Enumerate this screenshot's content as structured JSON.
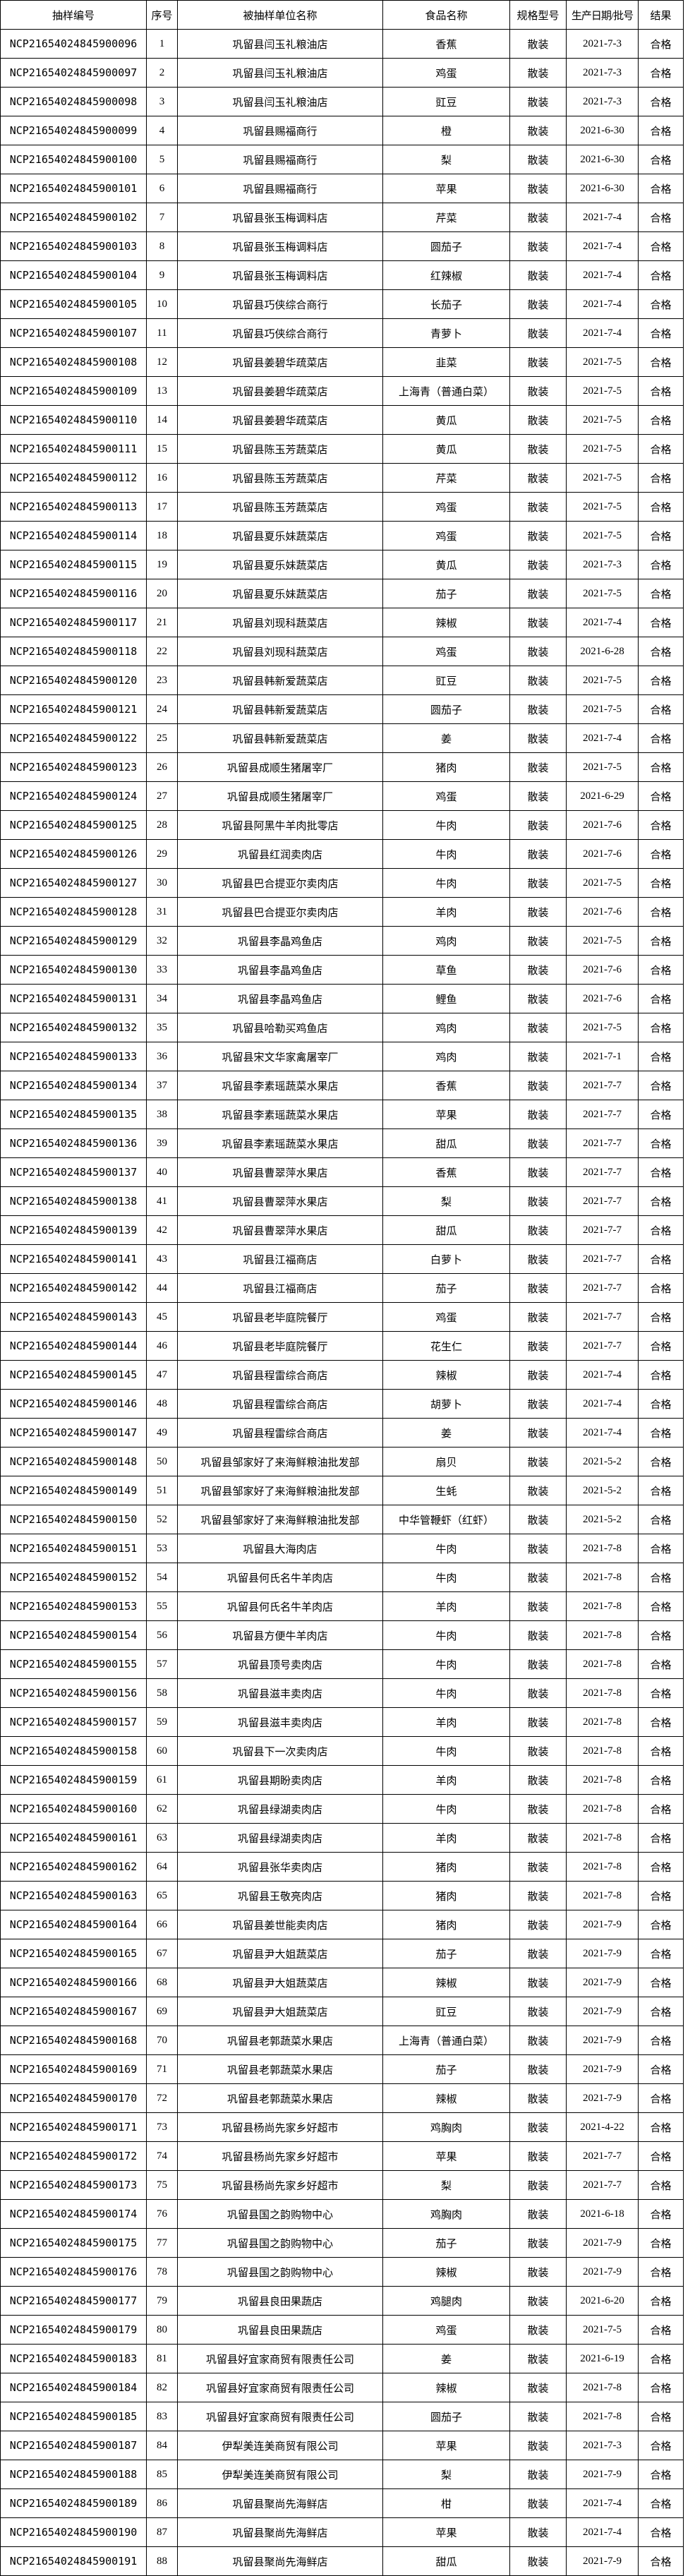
{
  "table": {
    "columns": [
      {
        "key": "sample_id",
        "label": "抽样编号"
      },
      {
        "key": "serial_number",
        "label": "序号"
      },
      {
        "key": "sampled_unit",
        "label": "被抽样单位名称"
      },
      {
        "key": "food_name",
        "label": "食品名称"
      },
      {
        "key": "spec_model",
        "label": "规格型号"
      },
      {
        "key": "production_date",
        "label": "生产日期/批号"
      },
      {
        "key": "result",
        "label": "结果"
      }
    ],
    "rows": [
      [
        "NCP21654024845900096",
        "1",
        "巩留县闫玉礼粮油店",
        "香蕉",
        "散装",
        "2021-7-3",
        "合格"
      ],
      [
        "NCP21654024845900097",
        "2",
        "巩留县闫玉礼粮油店",
        "鸡蛋",
        "散装",
        "2021-7-3",
        "合格"
      ],
      [
        "NCP21654024845900098",
        "3",
        "巩留县闫玉礼粮油店",
        "豇豆",
        "散装",
        "2021-7-3",
        "合格"
      ],
      [
        "NCP21654024845900099",
        "4",
        "巩留县赐福商行",
        "橙",
        "散装",
        "2021-6-30",
        "合格"
      ],
      [
        "NCP21654024845900100",
        "5",
        "巩留县赐福商行",
        "梨",
        "散装",
        "2021-6-30",
        "合格"
      ],
      [
        "NCP21654024845900101",
        "6",
        "巩留县赐福商行",
        "苹果",
        "散装",
        "2021-6-30",
        "合格"
      ],
      [
        "NCP21654024845900102",
        "7",
        "巩留县张玉梅调料店",
        "芹菜",
        "散装",
        "2021-7-4",
        "合格"
      ],
      [
        "NCP21654024845900103",
        "8",
        "巩留县张玉梅调料店",
        "圆茄子",
        "散装",
        "2021-7-4",
        "合格"
      ],
      [
        "NCP21654024845900104",
        "9",
        "巩留县张玉梅调料店",
        "红辣椒",
        "散装",
        "2021-7-4",
        "合格"
      ],
      [
        "NCP21654024845900105",
        "10",
        "巩留县巧侠综合商行",
        "长茄子",
        "散装",
        "2021-7-4",
        "合格"
      ],
      [
        "NCP21654024845900107",
        "11",
        "巩留县巧侠综合商行",
        "青萝卜",
        "散装",
        "2021-7-4",
        "合格"
      ],
      [
        "NCP21654024845900108",
        "12",
        "巩留县姜碧华疏菜店",
        "韭菜",
        "散装",
        "2021-7-5",
        "合格"
      ],
      [
        "NCP21654024845900109",
        "13",
        "巩留县姜碧华疏菜店",
        "上海青（普通白菜）",
        "散装",
        "2021-7-5",
        "合格"
      ],
      [
        "NCP21654024845900110",
        "14",
        "巩留县姜碧华疏菜店",
        "黄瓜",
        "散装",
        "2021-7-5",
        "合格"
      ],
      [
        "NCP21654024845900111",
        "15",
        "巩留县陈玉芳蔬菜店",
        "黄瓜",
        "散装",
        "2021-7-5",
        "合格"
      ],
      [
        "NCP21654024845900112",
        "16",
        "巩留县陈玉芳蔬菜店",
        "芹菜",
        "散装",
        "2021-7-5",
        "合格"
      ],
      [
        "NCP21654024845900113",
        "17",
        "巩留县陈玉芳蔬菜店",
        "鸡蛋",
        "散装",
        "2021-7-5",
        "合格"
      ],
      [
        "NCP21654024845900114",
        "18",
        "巩留县夏乐妹蔬菜店",
        "鸡蛋",
        "散装",
        "2021-7-5",
        "合格"
      ],
      [
        "NCP21654024845900115",
        "19",
        "巩留县夏乐妹蔬菜店",
        "黄瓜",
        "散装",
        "2021-7-3",
        "合格"
      ],
      [
        "NCP21654024845900116",
        "20",
        "巩留县夏乐妹蔬菜店",
        "茄子",
        "散装",
        "2021-7-5",
        "合格"
      ],
      [
        "NCP21654024845900117",
        "21",
        "巩留县刘现科蔬菜店",
        "辣椒",
        "散装",
        "2021-7-4",
        "合格"
      ],
      [
        "NCP21654024845900118",
        "22",
        "巩留县刘现科蔬菜店",
        "鸡蛋",
        "散装",
        "2021-6-28",
        "合格"
      ],
      [
        "NCP21654024845900120",
        "23",
        "巩留县韩新爱蔬菜店",
        "豇豆",
        "散装",
        "2021-7-5",
        "合格"
      ],
      [
        "NCP21654024845900121",
        "24",
        "巩留县韩新爱蔬菜店",
        "圆茄子",
        "散装",
        "2021-7-5",
        "合格"
      ],
      [
        "NCP21654024845900122",
        "25",
        "巩留县韩新爱蔬菜店",
        "姜",
        "散装",
        "2021-7-4",
        "合格"
      ],
      [
        "NCP21654024845900123",
        "26",
        "巩留县成顺生猪屠宰厂",
        "猪肉",
        "散装",
        "2021-7-5",
        "合格"
      ],
      [
        "NCP21654024845900124",
        "27",
        "巩留县成顺生猪屠宰厂",
        "鸡蛋",
        "散装",
        "2021-6-29",
        "合格"
      ],
      [
        "NCP21654024845900125",
        "28",
        "巩留县阿黑牛羊肉批零店",
        "牛肉",
        "散装",
        "2021-7-6",
        "合格"
      ],
      [
        "NCP21654024845900126",
        "29",
        "巩留县红润卖肉店",
        "牛肉",
        "散装",
        "2021-7-6",
        "合格"
      ],
      [
        "NCP21654024845900127",
        "30",
        "巩留县巴合提亚尔卖肉店",
        "牛肉",
        "散装",
        "2021-7-5",
        "合格"
      ],
      [
        "NCP21654024845900128",
        "31",
        "巩留县巴合提亚尔卖肉店",
        "羊肉",
        "散装",
        "2021-7-6",
        "合格"
      ],
      [
        "NCP21654024845900129",
        "32",
        "巩留县李晶鸡鱼店",
        "鸡肉",
        "散装",
        "2021-7-5",
        "合格"
      ],
      [
        "NCP21654024845900130",
        "33",
        "巩留县李晶鸡鱼店",
        "草鱼",
        "散装",
        "2021-7-6",
        "合格"
      ],
      [
        "NCP21654024845900131",
        "34",
        "巩留县李晶鸡鱼店",
        "鲤鱼",
        "散装",
        "2021-7-6",
        "合格"
      ],
      [
        "NCP21654024845900132",
        "35",
        "巩留县哈勒买鸡鱼店",
        "鸡肉",
        "散装",
        "2021-7-5",
        "合格"
      ],
      [
        "NCP21654024845900133",
        "36",
        "巩留县宋文华家禽屠宰厂",
        "鸡肉",
        "散装",
        "2021-7-1",
        "合格"
      ],
      [
        "NCP21654024845900134",
        "37",
        "巩留县李素瑶蔬菜水果店",
        "香蕉",
        "散装",
        "2021-7-7",
        "合格"
      ],
      [
        "NCP21654024845900135",
        "38",
        "巩留县李素瑶蔬菜水果店",
        "苹果",
        "散装",
        "2021-7-7",
        "合格"
      ],
      [
        "NCP21654024845900136",
        "39",
        "巩留县李素瑶蔬菜水果店",
        "甜瓜",
        "散装",
        "2021-7-7",
        "合格"
      ],
      [
        "NCP21654024845900137",
        "40",
        "巩留县曹翠萍水果店",
        "香蕉",
        "散装",
        "2021-7-7",
        "合格"
      ],
      [
        "NCP21654024845900138",
        "41",
        "巩留县曹翠萍水果店",
        "梨",
        "散装",
        "2021-7-7",
        "合格"
      ],
      [
        "NCP21654024845900139",
        "42",
        "巩留县曹翠萍水果店",
        "甜瓜",
        "散装",
        "2021-7-7",
        "合格"
      ],
      [
        "NCP21654024845900141",
        "43",
        "巩留县江福商店",
        "白萝卜",
        "散装",
        "2021-7-7",
        "合格"
      ],
      [
        "NCP21654024845900142",
        "44",
        "巩留县江福商店",
        "茄子",
        "散装",
        "2021-7-7",
        "合格"
      ],
      [
        "NCP21654024845900143",
        "45",
        "巩留县老毕庭院餐厅",
        "鸡蛋",
        "散装",
        "2021-7-7",
        "合格"
      ],
      [
        "NCP21654024845900144",
        "46",
        "巩留县老毕庭院餐厅",
        "花生仁",
        "散装",
        "2021-7-7",
        "合格"
      ],
      [
        "NCP21654024845900145",
        "47",
        "巩留县程雷综合商店",
        "辣椒",
        "散装",
        "2021-7-4",
        "合格"
      ],
      [
        "NCP21654024845900146",
        "48",
        "巩留县程雷综合商店",
        "胡萝卜",
        "散装",
        "2021-7-4",
        "合格"
      ],
      [
        "NCP21654024845900147",
        "49",
        "巩留县程雷综合商店",
        "姜",
        "散装",
        "2021-7-4",
        "合格"
      ],
      [
        "NCP21654024845900148",
        "50",
        "巩留县邹家好了来海鲜粮油批发部",
        "扇贝",
        "散装",
        "2021-5-2",
        "合格"
      ],
      [
        "NCP21654024845900149",
        "51",
        "巩留县邹家好了来海鲜粮油批发部",
        "生蚝",
        "散装",
        "2021-5-2",
        "合格"
      ],
      [
        "NCP21654024845900150",
        "52",
        "巩留县邹家好了来海鲜粮油批发部",
        "中华管鞭虾（红虾）",
        "散装",
        "2021-5-2",
        "合格"
      ],
      [
        "NCP21654024845900151",
        "53",
        "巩留县大海肉店",
        "牛肉",
        "散装",
        "2021-7-8",
        "合格"
      ],
      [
        "NCP21654024845900152",
        "54",
        "巩留县何氏名牛羊肉店",
        "牛肉",
        "散装",
        "2021-7-8",
        "合格"
      ],
      [
        "NCP21654024845900153",
        "55",
        "巩留县何氏名牛羊肉店",
        "羊肉",
        "散装",
        "2021-7-8",
        "合格"
      ],
      [
        "NCP21654024845900154",
        "56",
        "巩留县方便牛羊肉店",
        "牛肉",
        "散装",
        "2021-7-8",
        "合格"
      ],
      [
        "NCP21654024845900155",
        "57",
        "巩留县顶号卖肉店",
        "牛肉",
        "散装",
        "2021-7-8",
        "合格"
      ],
      [
        "NCP21654024845900156",
        "58",
        "巩留县滋丰卖肉店",
        "牛肉",
        "散装",
        "2021-7-8",
        "合格"
      ],
      [
        "NCP21654024845900157",
        "59",
        "巩留县滋丰卖肉店",
        "羊肉",
        "散装",
        "2021-7-8",
        "合格"
      ],
      [
        "NCP21654024845900158",
        "60",
        "巩留县下一次卖肉店",
        "牛肉",
        "散装",
        "2021-7-8",
        "合格"
      ],
      [
        "NCP21654024845900159",
        "61",
        "巩留县期盼卖肉店",
        "羊肉",
        "散装",
        "2021-7-8",
        "合格"
      ],
      [
        "NCP21654024845900160",
        "62",
        "巩留县绿湖卖肉店",
        "牛肉",
        "散装",
        "2021-7-8",
        "合格"
      ],
      [
        "NCP21654024845900161",
        "63",
        "巩留县绿湖卖肉店",
        "羊肉",
        "散装",
        "2021-7-8",
        "合格"
      ],
      [
        "NCP21654024845900162",
        "64",
        "巩留县张华卖肉店",
        "猪肉",
        "散装",
        "2021-7-8",
        "合格"
      ],
      [
        "NCP21654024845900163",
        "65",
        "巩留县王敬亮肉店",
        "猪肉",
        "散装",
        "2021-7-8",
        "合格"
      ],
      [
        "NCP21654024845900164",
        "66",
        "巩留县姜世能卖肉店",
        "猪肉",
        "散装",
        "2021-7-9",
        "合格"
      ],
      [
        "NCP21654024845900165",
        "67",
        "巩留县尹大姐蔬菜店",
        "茄子",
        "散装",
        "2021-7-9",
        "合格"
      ],
      [
        "NCP21654024845900166",
        "68",
        "巩留县尹大姐蔬菜店",
        "辣椒",
        "散装",
        "2021-7-9",
        "合格"
      ],
      [
        "NCP21654024845900167",
        "69",
        "巩留县尹大姐蔬菜店",
        "豇豆",
        "散装",
        "2021-7-9",
        "合格"
      ],
      [
        "NCP21654024845900168",
        "70",
        "巩留县老郭蔬菜水果店",
        "上海青（普通白菜）",
        "散装",
        "2021-7-9",
        "合格"
      ],
      [
        "NCP21654024845900169",
        "71",
        "巩留县老郭蔬菜水果店",
        "茄子",
        "散装",
        "2021-7-9",
        "合格"
      ],
      [
        "NCP21654024845900170",
        "72",
        "巩留县老郭蔬菜水果店",
        "辣椒",
        "散装",
        "2021-7-9",
        "合格"
      ],
      [
        "NCP21654024845900171",
        "73",
        "巩留县杨尚先家乡好超市",
        "鸡胸肉",
        "散装",
        "2021-4-22",
        "合格"
      ],
      [
        "NCP21654024845900172",
        "74",
        "巩留县杨尚先家乡好超市",
        "苹果",
        "散装",
        "2021-7-7",
        "合格"
      ],
      [
        "NCP21654024845900173",
        "75",
        "巩留县杨尚先家乡好超市",
        "梨",
        "散装",
        "2021-7-7",
        "合格"
      ],
      [
        "NCP21654024845900174",
        "76",
        "巩留县国之韵购物中心",
        "鸡胸肉",
        "散装",
        "2021-6-18",
        "合格"
      ],
      [
        "NCP21654024845900175",
        "77",
        "巩留县国之韵购物中心",
        "茄子",
        "散装",
        "2021-7-9",
        "合格"
      ],
      [
        "NCP21654024845900176",
        "78",
        "巩留县国之韵购物中心",
        "辣椒",
        "散装",
        "2021-7-9",
        "合格"
      ],
      [
        "NCP21654024845900177",
        "79",
        "巩留县良田果蔬店",
        "鸡腿肉",
        "散装",
        "2021-6-20",
        "合格"
      ],
      [
        "NCP21654024845900179",
        "80",
        "巩留县良田果蔬店",
        "鸡蛋",
        "散装",
        "2021-7-5",
        "合格"
      ],
      [
        "NCP21654024845900183",
        "81",
        "巩留县好宜家商贸有限责任公司",
        "姜",
        "散装",
        "2021-6-19",
        "合格"
      ],
      [
        "NCP21654024845900184",
        "82",
        "巩留县好宜家商贸有限责任公司",
        "辣椒",
        "散装",
        "2021-7-8",
        "合格"
      ],
      [
        "NCP21654024845900185",
        "83",
        "巩留县好宜家商贸有限责任公司",
        "圆茄子",
        "散装",
        "2021-7-8",
        "合格"
      ],
      [
        "NCP21654024845900187",
        "84",
        "伊犁美连美商贸有限公司",
        "苹果",
        "散装",
        "2021-7-3",
        "合格"
      ],
      [
        "NCP21654024845900188",
        "85",
        "伊犁美连美商贸有限公司",
        "梨",
        "散装",
        "2021-7-9",
        "合格"
      ],
      [
        "NCP21654024845900189",
        "86",
        "巩留县聚尚先海鲜店",
        "柑",
        "散装",
        "2021-7-4",
        "合格"
      ],
      [
        "NCP21654024845900190",
        "87",
        "巩留县聚尚先海鲜店",
        "苹果",
        "散装",
        "2021-7-4",
        "合格"
      ],
      [
        "NCP21654024845900191",
        "88",
        "巩留县聚尚先海鲜店",
        "甜瓜",
        "散装",
        "2021-7-9",
        "合格"
      ]
    ]
  }
}
